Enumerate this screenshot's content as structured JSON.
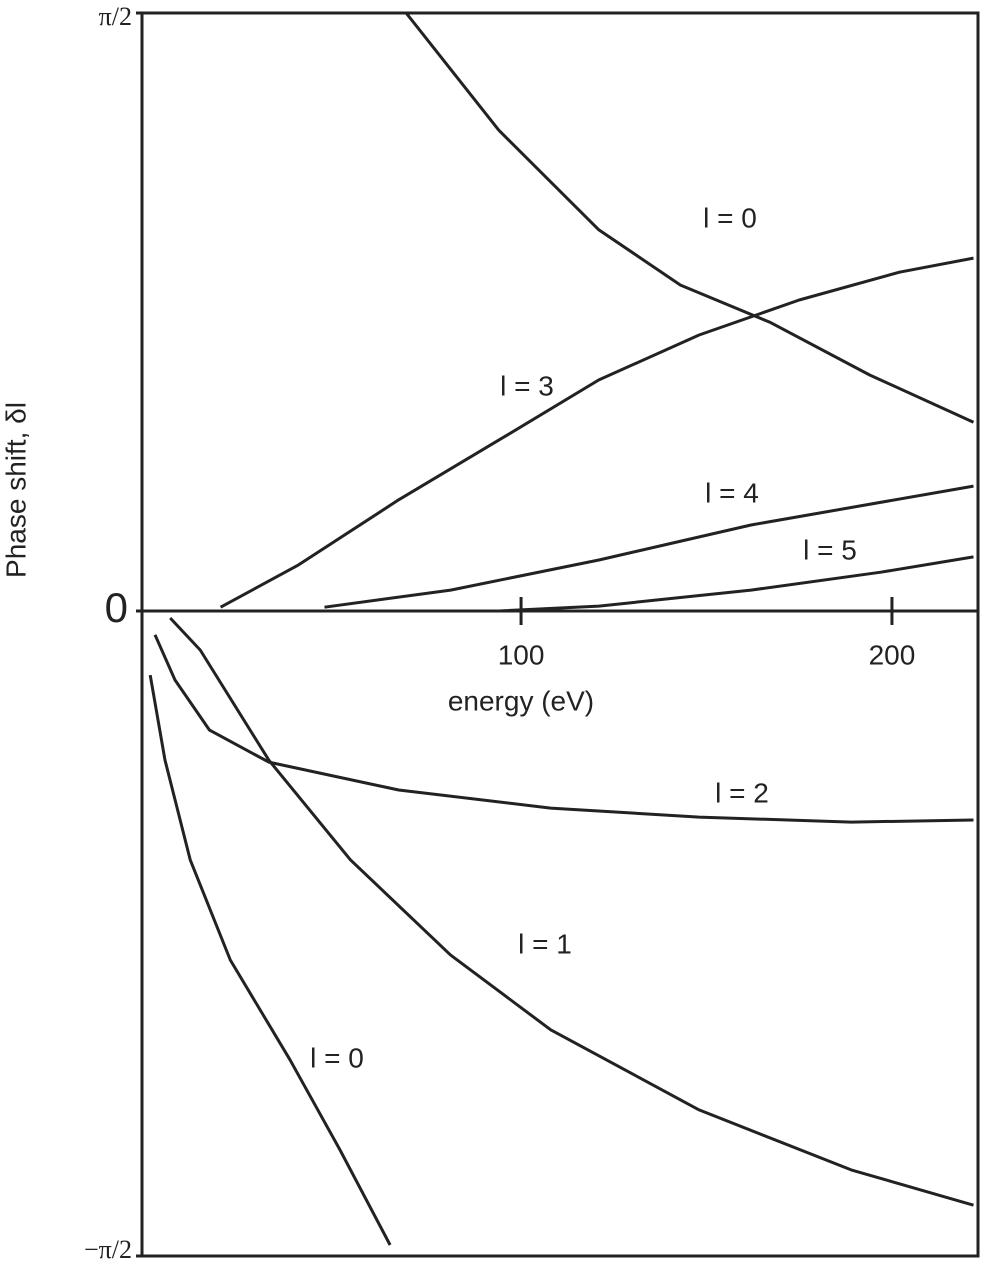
{
  "chart_data": {
    "type": "line",
    "xlabel": "energy (eV)",
    "ylabel": "Phase shift, δl",
    "xlim": [
      -2.2,
      223.2
    ],
    "xticks": [
      100,
      200
    ],
    "ylim": [
      -1.5708,
      1.5708
    ],
    "yticks": [
      {
        "value": 1.5708,
        "label": "π/2"
      },
      0,
      {
        "value": -1.5708,
        "label": "−π/2"
      }
    ],
    "color": "#222222",
    "series": [
      {
        "name": "l = 0",
        "x": [
          69,
          94,
          121,
          143,
          167,
          194,
          222
        ],
        "values": [
          1.571,
          1.263,
          1.001,
          0.856,
          0.759,
          0.62,
          0.496
        ]
      },
      {
        "name": "l = 3",
        "x": [
          19,
          40,
          67,
          94,
          121,
          148,
          175,
          202,
          222
        ],
        "values": [
          0.01,
          0.121,
          0.292,
          0.449,
          0.607,
          0.725,
          0.817,
          0.89,
          0.927
        ]
      },
      {
        "name": "l = 4",
        "x": [
          47,
          81,
          121,
          162,
          222
        ],
        "values": [
          0.01,
          0.055,
          0.134,
          0.226,
          0.328
        ]
      },
      {
        "name": "l = 5",
        "x": [
          94,
          121,
          162,
          197,
          222
        ],
        "values": [
          0,
          0.013,
          0.055,
          0.102,
          0.142
        ]
      },
      {
        "name": "l = 2",
        "x": [
          1.3,
          6.7,
          16,
          32,
          67,
          108,
          148,
          189,
          222
        ],
        "values": [
          -0.058,
          -0.168,
          -0.29,
          -0.368,
          -0.436,
          -0.48,
          -0.502,
          -0.514,
          -0.509
        ]
      },
      {
        "name": "l = 1",
        "x": [
          5.4,
          13.5,
          32,
          54,
          81,
          108,
          148,
          189,
          222
        ],
        "values": [
          -0.017,
          -0.095,
          -0.363,
          -0.606,
          -0.838,
          -1.02,
          -1.215,
          -1.361,
          -1.447
        ]
      },
      {
        "name": "l = 0",
        "x": [
          0,
          4,
          10.8,
          21.6,
          37.7,
          51.2,
          64.7
        ],
        "values": [
          -0.156,
          -0.363,
          -0.606,
          -0.85,
          -1.093,
          -1.313,
          -1.544
        ]
      }
    ]
  }
}
